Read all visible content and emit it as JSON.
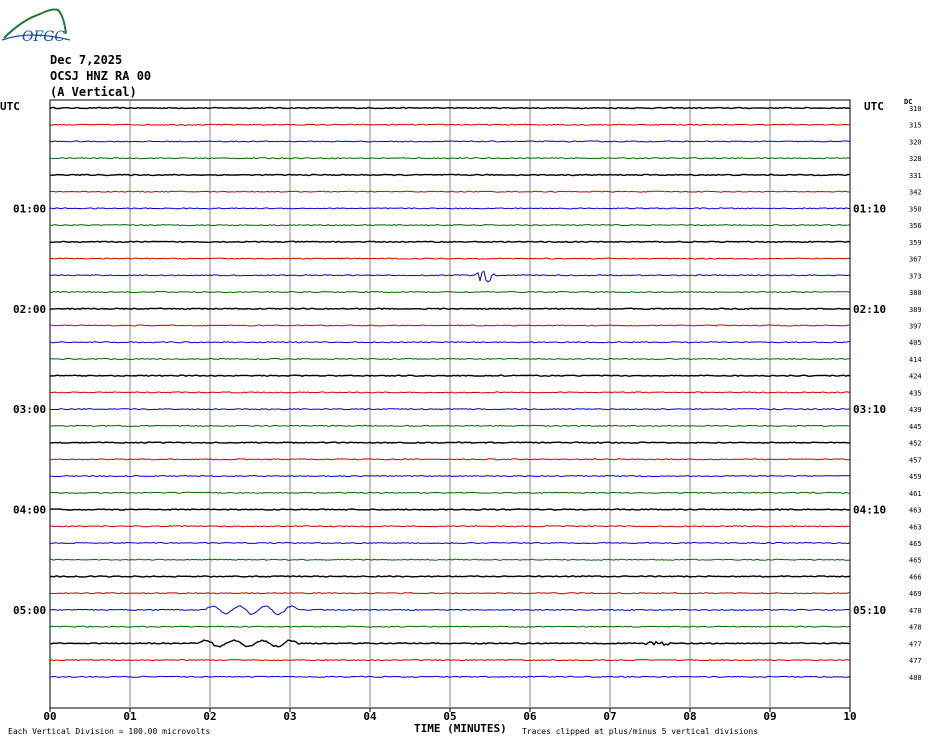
{
  "header": {
    "logo_text": "OFGC",
    "date": "Dec 7,2025",
    "station": "OCSJ HNZ RA 00",
    "component": "(A Vertical)"
  },
  "axes": {
    "left_unit": "UTC",
    "right_unit": "UTC",
    "right_column_label": "DC",
    "x_title": "TIME (MINUTES)"
  },
  "footer": {
    "scale_note": "Each Vertical Division =  100.00 microvolts",
    "clip_note": "Traces clipped at plus/minus 5 vertical divisions"
  },
  "colors": {
    "row_cycle": [
      "#000000",
      "#cc0000",
      "#0000cc",
      "#006600"
    ],
    "grid": "#888888"
  },
  "chart_data": {
    "type": "helicorder",
    "x": {
      "min": 0,
      "max": 10,
      "tick_labels": [
        "00",
        "01",
        "02",
        "03",
        "04",
        "05",
        "06",
        "07",
        "08",
        "09",
        "10"
      ]
    },
    "left_time_labels": [
      {
        "row": 6,
        "label": "01:00"
      },
      {
        "row": 12,
        "label": "02:00"
      },
      {
        "row": 18,
        "label": "03:00"
      },
      {
        "row": 24,
        "label": "04:00"
      },
      {
        "row": 30,
        "label": "05:00"
      }
    ],
    "right_time_labels": [
      {
        "row": 6,
        "label": "01:10"
      },
      {
        "row": 12,
        "label": "02:10"
      },
      {
        "row": 18,
        "label": "03:10"
      },
      {
        "row": 24,
        "label": "04:10"
      },
      {
        "row": 30,
        "label": "05:10"
      }
    ],
    "dc_offsets": [
      "310",
      "315",
      "320",
      "328",
      "331",
      "342",
      "350",
      "356",
      "359",
      "367",
      "373",
      "380",
      "389",
      "397",
      "405",
      "414",
      "424",
      "435",
      "439",
      "445",
      "452",
      "457",
      "459",
      "461",
      "463",
      "463",
      "465",
      "465",
      "466",
      "469",
      "470",
      "478",
      "477",
      "477",
      "480"
    ],
    "events": [
      {
        "row": 10,
        "start_min": 5.3,
        "end_min": 5.65,
        "kind": "burst",
        "peak": 1.4
      },
      {
        "row": 30,
        "start_min": 1.95,
        "end_min": 3.1,
        "kind": "wave",
        "peak": 0.45
      },
      {
        "row": 32,
        "start_min": 1.85,
        "end_min": 3.1,
        "kind": "wave",
        "peak": 0.35
      },
      {
        "row": 32,
        "start_min": 7.45,
        "end_min": 7.75,
        "kind": "noise",
        "peak": 0.2
      }
    ]
  }
}
